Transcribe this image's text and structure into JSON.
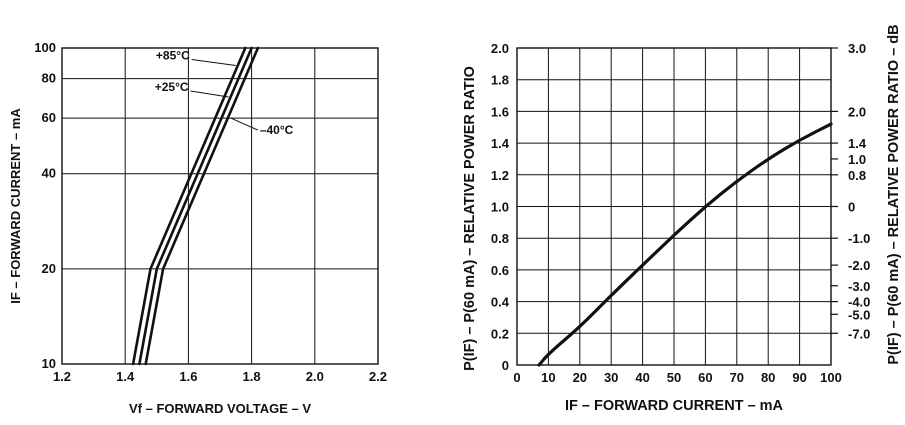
{
  "chart_data": [
    {
      "type": "line",
      "xlabel": "Vf – FORWARD VOLTAGE – V",
      "ylabel": "IF – FORWARD CURRENT – mA",
      "xlim": [
        1.2,
        2.2
      ],
      "ylim": [
        10,
        100
      ],
      "xticks": [
        "1.2",
        "1.4",
        "1.6",
        "1.8",
        "2.0",
        "2.2"
      ],
      "yticks": [
        "10",
        "20",
        "40",
        "60",
        "80",
        "100"
      ],
      "grid": true,
      "series": [
        {
          "name": "+85°C",
          "x": [
            1.425,
            1.48,
            1.78
          ],
          "y": [
            10,
            20,
            100
          ]
        },
        {
          "name": "+25°C",
          "x": [
            1.445,
            1.5,
            1.8
          ],
          "y": [
            10,
            20,
            100
          ]
        },
        {
          "name": "–40°C",
          "x": [
            1.465,
            1.52,
            1.82
          ],
          "y": [
            10,
            20,
            100
          ]
        }
      ],
      "annotations": [
        "+85°C",
        "+25°C",
        "–40°C"
      ]
    },
    {
      "type": "line",
      "xlabel": "IF – FORWARD CURRENT – mA",
      "ylabel": "P(IF) – P(60 mA) – RELATIVE POWER RATIO",
      "ylabel_right": "P(IF) – P(60 mA) – RELATIVE POWER RATIO – dB",
      "xlim": [
        0,
        100
      ],
      "ylim": [
        0,
        2.0
      ],
      "xticks": [
        "0",
        "10",
        "20",
        "30",
        "40",
        "50",
        "60",
        "70",
        "80",
        "90",
        "100"
      ],
      "yticks": [
        "0",
        "0.2",
        "0.4",
        "0.6",
        "0.8",
        "1.0",
        "1.2",
        "1.4",
        "1.6",
        "1.8",
        "2.0"
      ],
      "right_ticks": [
        {
          "label": "3.0",
          "ratio": 2.0
        },
        {
          "label": "2.0",
          "ratio": 1.6
        },
        {
          "label": "1.4",
          "ratio": 1.4
        },
        {
          "label": "1.0",
          "ratio": 1.3
        },
        {
          "label": "0.8",
          "ratio": 1.2
        },
        {
          "label": "0",
          "ratio": 1.0
        },
        {
          "label": "-1.0",
          "ratio": 0.8
        },
        {
          "label": "-2.0",
          "ratio": 0.63
        },
        {
          "label": "-3.0",
          "ratio": 0.5
        },
        {
          "label": "-4.0",
          "ratio": 0.4
        },
        {
          "label": "-5.0",
          "ratio": 0.32
        },
        {
          "label": "-7.0",
          "ratio": 0.2
        }
      ],
      "grid": true,
      "series": [
        {
          "x": [
            7,
            10,
            20,
            30,
            40,
            50,
            60,
            70,
            80,
            90,
            100
          ],
          "y": [
            0,
            0.07,
            0.24,
            0.44,
            0.63,
            0.82,
            1.0,
            1.16,
            1.3,
            1.42,
            1.52
          ]
        }
      ]
    }
  ]
}
